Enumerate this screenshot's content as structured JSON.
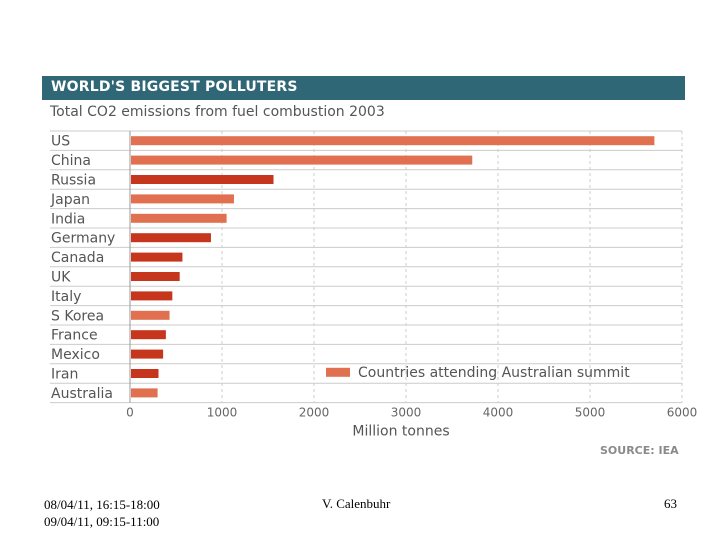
{
  "chart_data": {
    "type": "bar",
    "orientation": "horizontal",
    "header": "WORLD'S BIGGEST POLLUTERS",
    "title": "Total CO2 emissions from fuel combustion 2003",
    "xlabel": "Million tonnes",
    "ylabel": "",
    "xlim": [
      0,
      6000
    ],
    "xticks": [
      0,
      1000,
      2000,
      3000,
      4000,
      5000,
      6000
    ],
    "grid": true,
    "categories": [
      "US",
      "China",
      "Russia",
      "Japan",
      "India",
      "Germany",
      "Canada",
      "UK",
      "Italy",
      "S Korea",
      "France",
      "Mexico",
      "Iran",
      "Australia"
    ],
    "values": [
      5700,
      3720,
      1560,
      1130,
      1050,
      880,
      570,
      540,
      460,
      430,
      390,
      360,
      310,
      300
    ],
    "summit_attendee": [
      true,
      true,
      false,
      true,
      true,
      false,
      false,
      false,
      false,
      true,
      false,
      false,
      false,
      true
    ],
    "colors": {
      "attendee": "#e07050",
      "other": "#c6361c",
      "header_bg": "#2f6777",
      "grid": "#cccccc"
    },
    "legend": {
      "label": "Countries attending Australian summit",
      "color": "#e07050",
      "placement": "bottom-right"
    },
    "source": "SOURCE: IEA"
  },
  "footer": {
    "dates_line1": "08/04/11, 16:15-18:00",
    "dates_line2": "09/04/11, 09:15-11:00",
    "author": "V. Calenbuhr",
    "page_number": "63"
  }
}
